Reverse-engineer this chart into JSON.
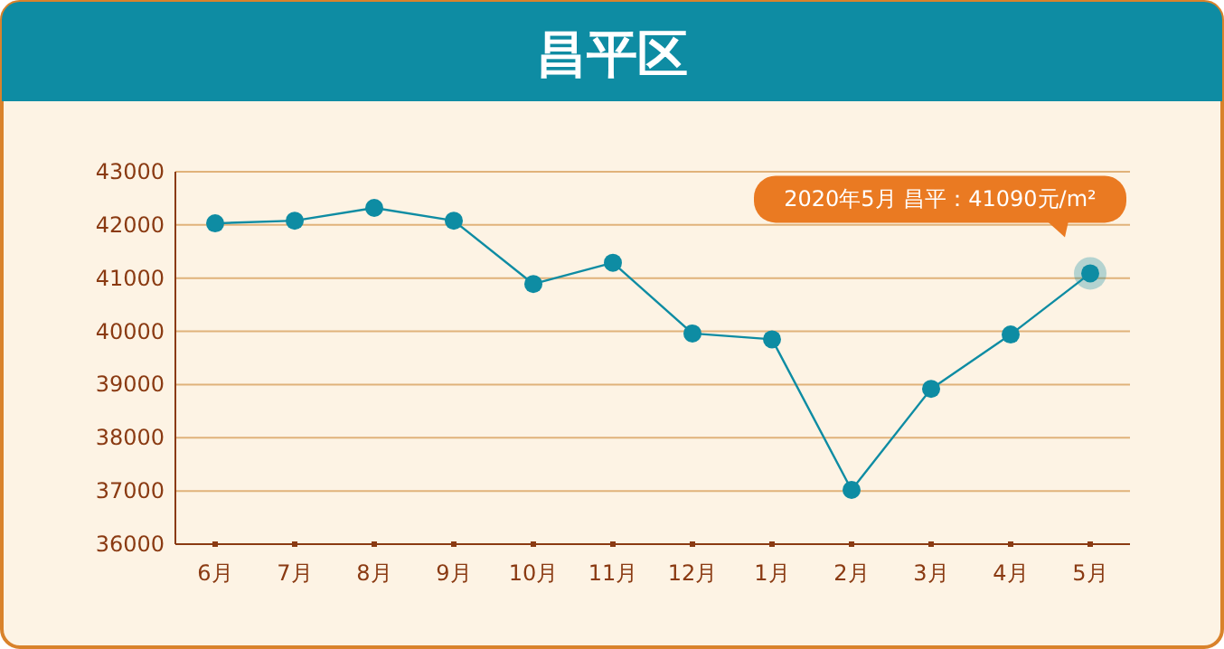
{
  "chart_data": {
    "type": "line",
    "title": "昌平区",
    "categories": [
      "6月",
      "7月",
      "8月",
      "9月",
      "10月",
      "11月",
      "12月",
      "1月",
      "2月",
      "3月",
      "4月",
      "5月"
    ],
    "series": [
      {
        "color": "#0e8ca3",
        "values": [
          42030,
          42080,
          42320,
          42080,
          40890,
          41290,
          39960,
          39850,
          37020,
          38920,
          39940,
          41090
        ]
      }
    ],
    "ylim": [
      36000,
      43000
    ],
    "yticks": [
      36000,
      37000,
      38000,
      39000,
      40000,
      41000,
      42000,
      43000
    ],
    "grid": "y",
    "marker": "circle",
    "line_style": "solid",
    "annotations": [
      {
        "text": "2020年5月 昌平：41090元/m²",
        "x": "5月",
        "y": 41090
      }
    ]
  }
}
